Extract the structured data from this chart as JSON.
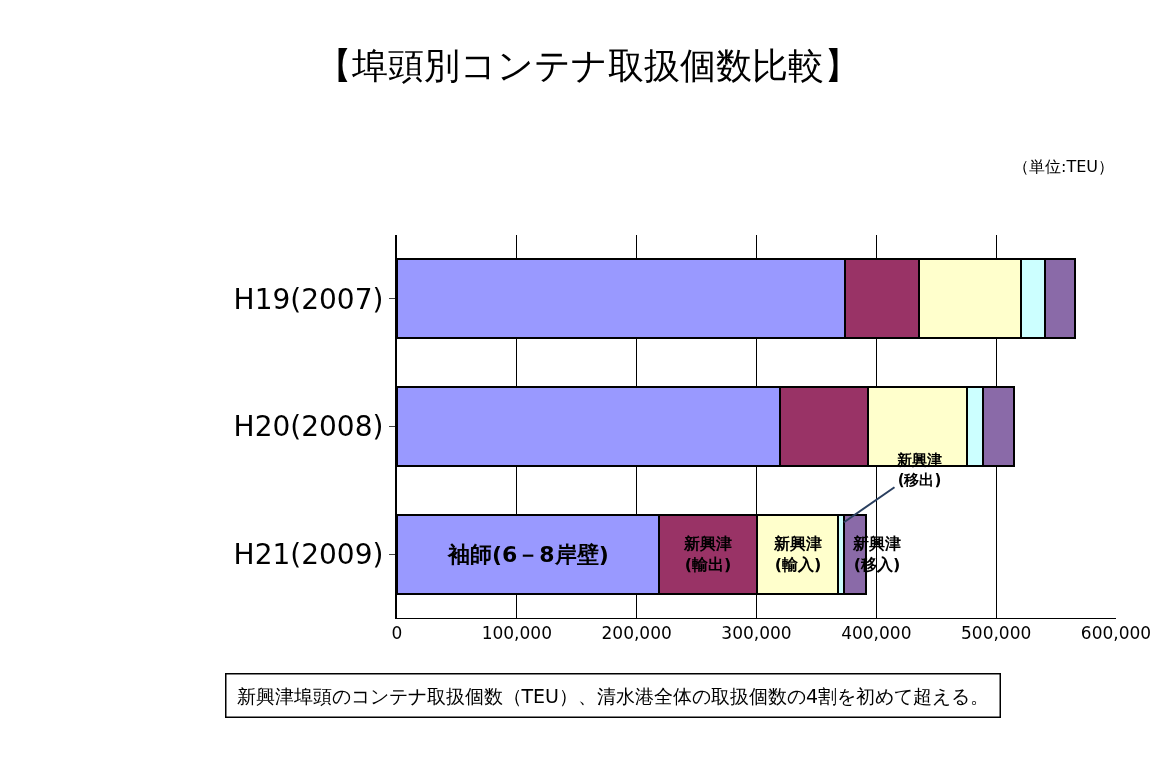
{
  "chart_data": {
    "type": "bar",
    "orientation": "horizontal",
    "stacked": true,
    "title": "【埠頭別コンテナ取扱個数比較】",
    "categories": [
      "H19(2007)",
      "H20(2008)",
      "H21(2009)"
    ],
    "series": [
      {
        "name": "袖師(6－8岸壁)",
        "color": "#9999ff",
        "values": [
          374000,
          320000,
          219000
        ]
      },
      {
        "name": "新興津\n(輸出)",
        "color": "#993366",
        "values": [
          62000,
          73000,
          81000
        ]
      },
      {
        "name": "新興津\n(輸入)",
        "color": "#ffffcc",
        "values": [
          85000,
          83000,
          68000
        ]
      },
      {
        "name": "新興津\n(移出)",
        "color": "#ccffff",
        "values": [
          20000,
          13000,
          5000
        ]
      },
      {
        "name": "新興津\n(移入)",
        "color": "#8a6aa8",
        "values": [
          25000,
          26000,
          18000
        ]
      }
    ],
    "xlim": [
      0,
      600000
    ],
    "xticks": [
      0,
      {
        "value": 100000,
        "label": "100,000"
      },
      {
        "value": 200000,
        "label": "200,000"
      },
      {
        "value": 300000,
        "label": "300,000"
      },
      {
        "value": 400000,
        "label": "400,000"
      },
      {
        "value": 500000,
        "label": "500,000"
      },
      {
        "value": 600000,
        "label": "600,000"
      }
    ],
    "grid": "x",
    "legend": false,
    "annotations": [
      "（単位:TEU）",
      "新興津埠頭のコンテナ取扱個数（TEU）、清水港全体の取扱個数の4割を初めて超える。"
    ]
  }
}
